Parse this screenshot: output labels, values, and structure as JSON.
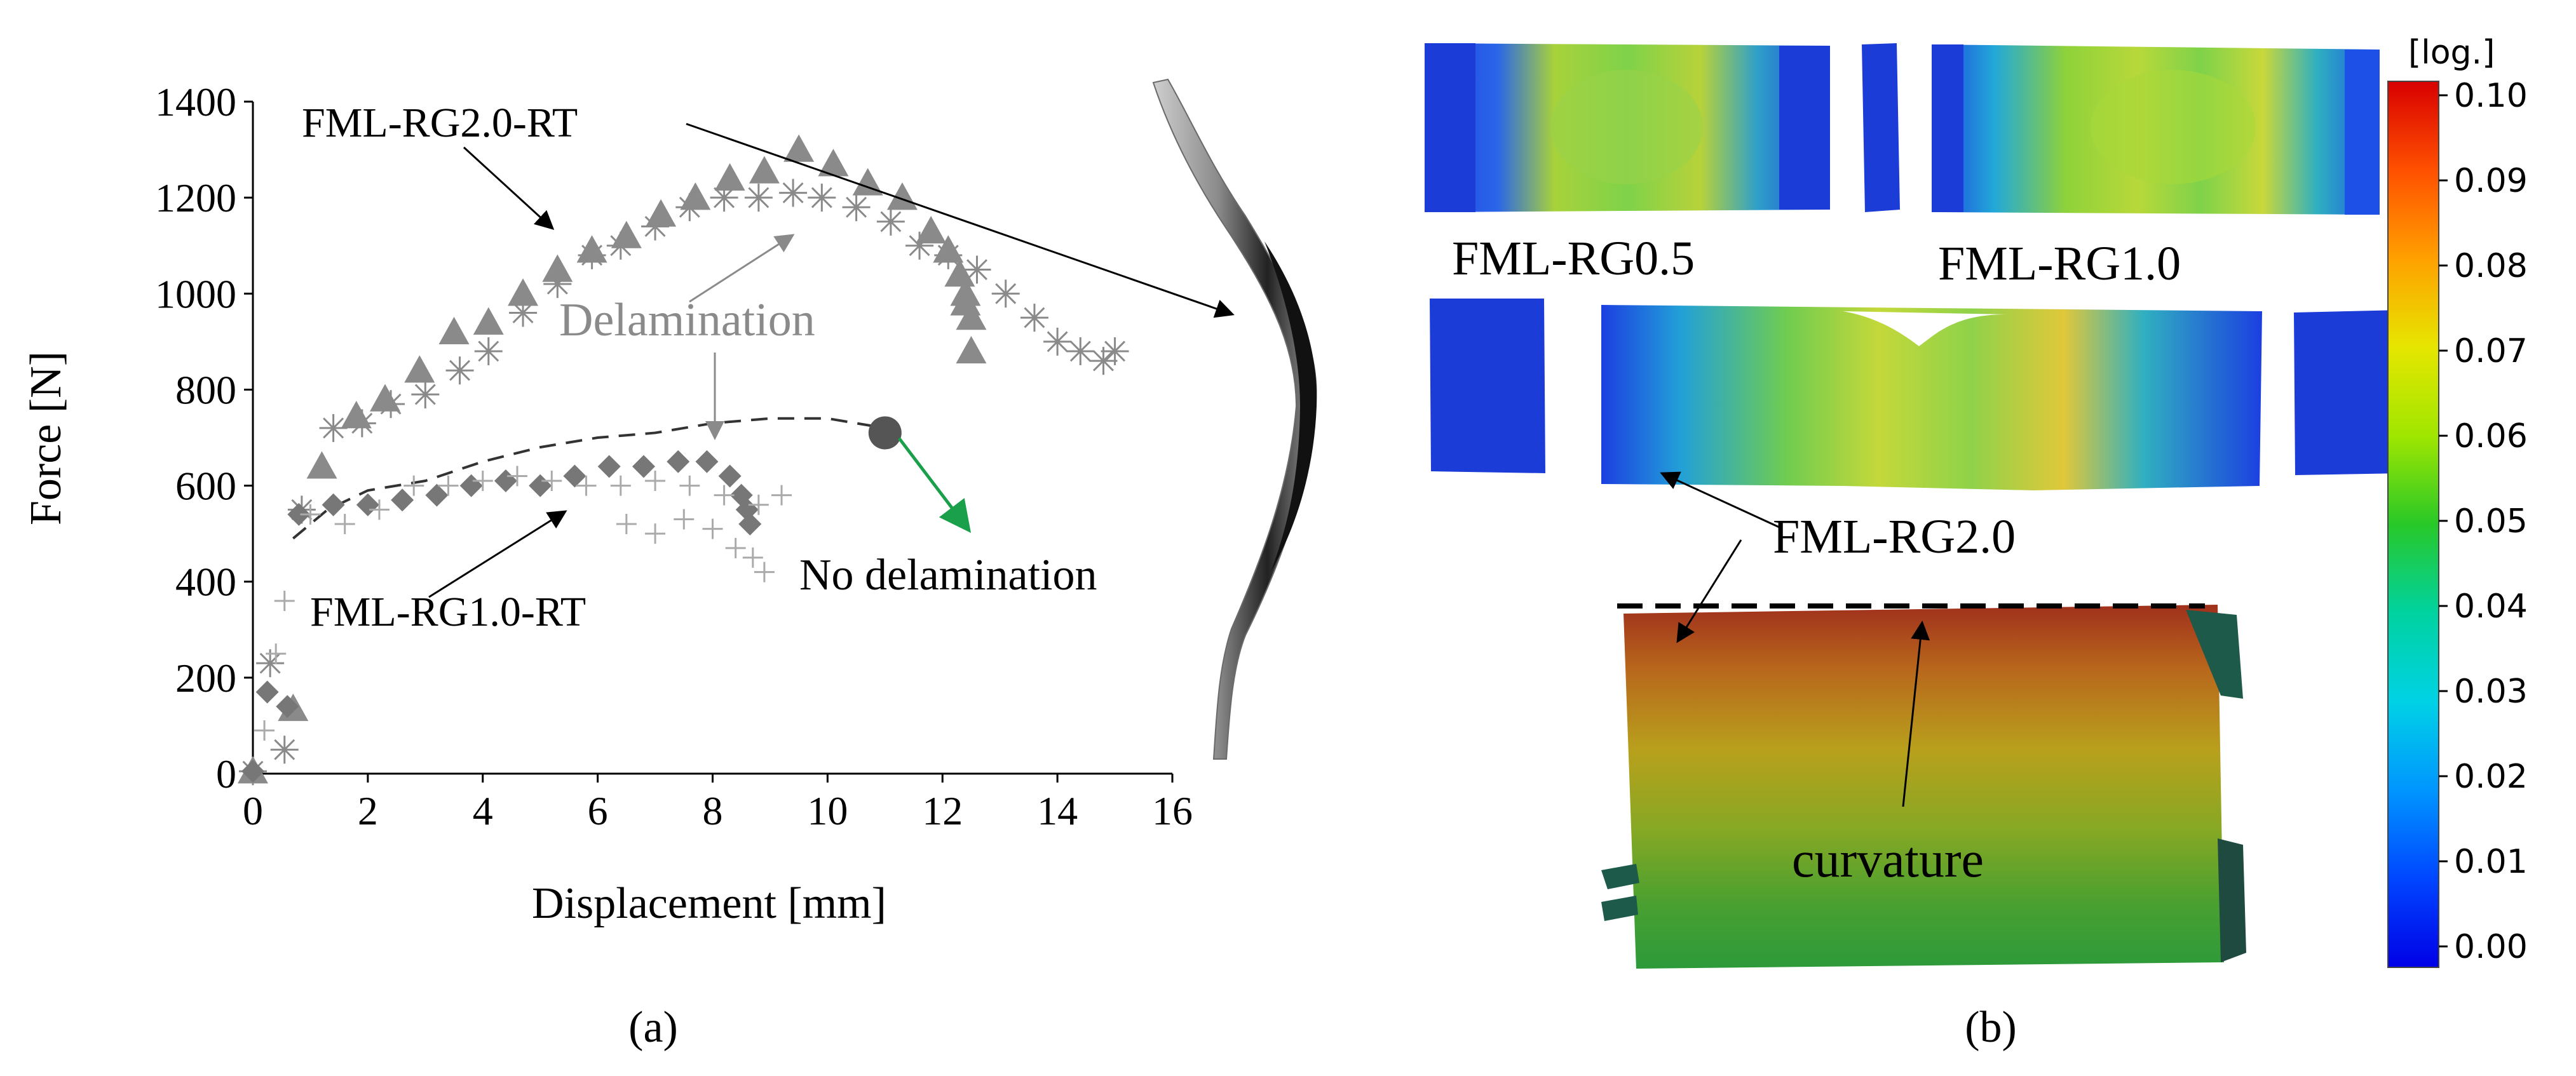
{
  "panel_a_label": "(a)",
  "panel_b_label": "(b)",
  "chart_data": {
    "type": "scatter",
    "xlabel": "Displacement [mm]",
    "ylabel": "Force [N]",
    "xlim": [
      0,
      16
    ],
    "ylim": [
      0,
      1400
    ],
    "xticks": [
      0,
      2,
      4,
      6,
      8,
      10,
      12,
      14,
      16
    ],
    "yticks": [
      0,
      200,
      400,
      600,
      800,
      1000,
      1200,
      1400
    ],
    "grid": false,
    "series": [
      {
        "marker": "triangle",
        "color": "#8a8a8a",
        "label_group": "FML-RG2.0-RT",
        "x": [
          0.0,
          0.7,
          1.2,
          1.8,
          2.3,
          2.9,
          3.5,
          4.1,
          4.7,
          5.3,
          5.9,
          6.5,
          7.1,
          7.7,
          8.3,
          8.9,
          9.5,
          10.1,
          10.7,
          11.3,
          11.8,
          12.1,
          12.3,
          12.4,
          12.5,
          12.4,
          12.5
        ],
        "y": [
          5,
          135,
          640,
          745,
          780,
          840,
          920,
          940,
          1000,
          1050,
          1090,
          1120,
          1165,
          1200,
          1240,
          1255,
          1300,
          1270,
          1230,
          1200,
          1130,
          1090,
          1040,
          1000,
          950,
          980,
          880
        ]
      },
      {
        "marker": "asterisk",
        "color": "#8a8a8a",
        "label_group": "FML-RG2.0-RT",
        "x": [
          0.0,
          0.3,
          0.55,
          0.85,
          1.4,
          1.9,
          2.4,
          3.0,
          3.6,
          4.1,
          4.7,
          5.3,
          5.9,
          6.4,
          7.0,
          7.6,
          8.2,
          8.8,
          9.4,
          9.9,
          10.5,
          11.1,
          11.6,
          12.1,
          12.6,
          13.1,
          13.6,
          14.0,
          14.4,
          14.8,
          15.0
        ],
        "y": [
          5,
          230,
          50,
          550,
          720,
          730,
          770,
          790,
          840,
          880,
          960,
          1020,
          1080,
          1100,
          1140,
          1180,
          1200,
          1200,
          1210,
          1200,
          1180,
          1150,
          1100,
          1080,
          1050,
          1000,
          950,
          900,
          880,
          860,
          880
        ]
      },
      {
        "marker": "diamond",
        "color": "#777777",
        "label_group": "FML-RG1.0-RT",
        "x": [
          0.0,
          0.25,
          0.6,
          0.8,
          1.4,
          2.0,
          2.6,
          3.2,
          3.8,
          4.4,
          5.0,
          5.6,
          6.2,
          6.8,
          7.4,
          7.9,
          8.3,
          8.5,
          8.6,
          8.65
        ],
        "y": [
          5,
          170,
          140,
          540,
          560,
          560,
          570,
          580,
          600,
          610,
          600,
          620,
          640,
          640,
          650,
          650,
          620,
          580,
          550,
          520
        ]
      },
      {
        "marker": "plus",
        "color": "#aaaaaa",
        "label_group": "FML-RG1.0-RT",
        "x": [
          0.2,
          0.4,
          0.55,
          1.0,
          1.6,
          2.2,
          2.8,
          3.4,
          4.0,
          4.6,
          5.2,
          5.8,
          6.4,
          7.0,
          7.6,
          8.2,
          8.8,
          9.2
        ],
        "y": [
          90,
          250,
          360,
          540,
          520,
          550,
          600,
          600,
          610,
          620,
          610,
          600,
          600,
          610,
          600,
          580,
          560,
          580
        ]
      },
      {
        "marker": "plus",
        "color": "#aaaaaa",
        "label_group": "FML-RG1.0-RT",
        "x": [
          6.5,
          7.0,
          7.5,
          8.0,
          8.4,
          8.7,
          8.9
        ],
        "y": [
          520,
          500,
          530,
          510,
          470,
          450,
          420
        ]
      }
    ],
    "dashed_envelope": {
      "x": [
        0.7,
        1.3,
        2.0,
        3.0,
        4.0,
        5.0,
        6.0,
        7.0,
        8.0,
        9.0,
        10.0,
        11.0
      ],
      "y": [
        490,
        550,
        590,
        610,
        650,
        680,
        700,
        710,
        730,
        740,
        740,
        720
      ]
    },
    "endpoint": {
      "x": 11.0,
      "y": 710
    },
    "annotations": [
      {
        "text": "FML-RG2.0-RT",
        "color": "#000000"
      },
      {
        "text": "Delamination",
        "color": "#8a8a8a"
      },
      {
        "text": "FML-RG1.0-RT",
        "color": "#000000"
      },
      {
        "text": "No delamination",
        "color": "#000000"
      }
    ]
  },
  "panel_b": {
    "labels": {
      "rg05": "FML-RG0.5",
      "rg10": "FML-RG1.0",
      "rg20": "FML-RG2.0",
      "curvature": "curvature"
    },
    "colorbar": {
      "unit": "[log.]",
      "ticks": [
        "0.10",
        "0.09",
        "0.08",
        "0.07",
        "0.06",
        "0.05",
        "0.04",
        "0.03",
        "0.02",
        "0.01",
        "0.00"
      ],
      "colors": [
        "#d80000",
        "#ff5000",
        "#ffa000",
        "#e6e600",
        "#a0e600",
        "#28c828",
        "#00d2a0",
        "#00d2e6",
        "#0096ff",
        "#0046ff",
        "#0000e6"
      ]
    }
  }
}
